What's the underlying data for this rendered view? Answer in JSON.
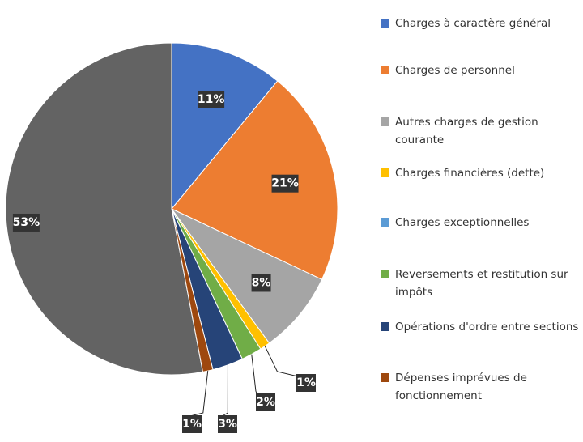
{
  "chart_data": {
    "type": "pie",
    "categories": [
      "Charges à caractère général",
      "Charges de personnel",
      "Autres charges de gestion courante",
      "Charges financières (dette)",
      "Charges exceptionnelles",
      "Reversements et restitution sur impôts",
      "Opérations d'ordre entre sections",
      "Dépenses imprévues de fonctionnement",
      null
    ],
    "values": [
      11,
      21,
      8,
      1,
      0,
      2,
      3,
      1,
      53
    ],
    "value_labels": [
      "11%",
      "21%",
      "8%",
      "1%",
      null,
      "2%",
      "3%",
      "1%",
      "53%"
    ],
    "colors": [
      "#4472c4",
      "#ed7d31",
      "#a5a5a5",
      "#ffc000",
      "#5b9bd5",
      "#70ad47",
      "#264478",
      "#9e480e",
      "#636363"
    ],
    "legend": "right"
  }
}
